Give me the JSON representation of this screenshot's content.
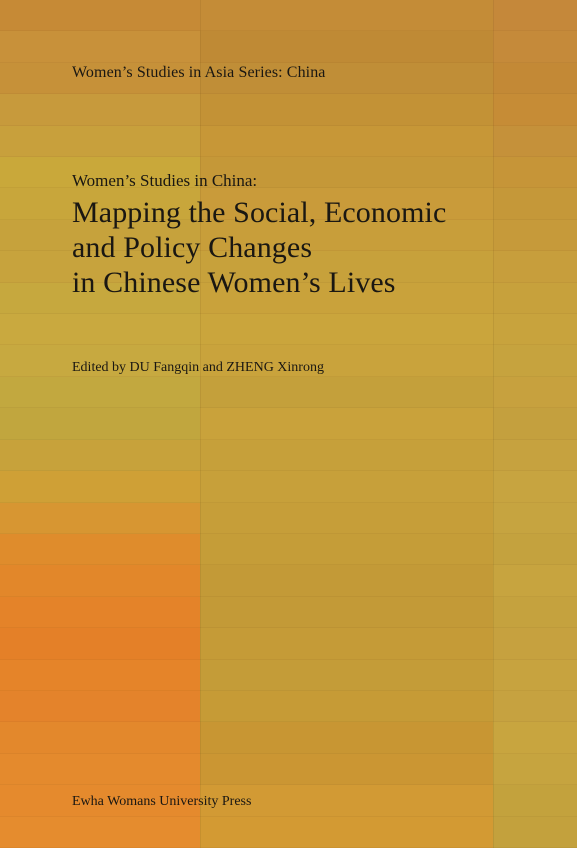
{
  "cover": {
    "series": "Women’s Studies in Asia Series: China",
    "subtitle": "Women’s Studies in China:",
    "title_lines": [
      "Mapping the Social, Economic",
      "and Policy Changes",
      "in Chinese Women’s Lives"
    ],
    "editors": "Edited by DU Fangqin and ZHENG Xinrong",
    "publisher": "Ewha Womans University Press"
  },
  "colors": {
    "base": "#c39a36",
    "left_column": [
      "#c68a36",
      "#c8913a",
      "#c69139",
      "#c79a3c",
      "#c8a03c",
      "#c9a83a",
      "#c8a63b",
      "#c6a23c",
      "#c7a33d",
      "#c6a83e",
      "#c9a93f",
      "#c7a940",
      "#c2a83f",
      "#c1a63e",
      "#c7a23b",
      "#cfa036",
      "#d79632",
      "#df8c2c",
      "#e2872a",
      "#e48329",
      "#e48028",
      "#e58429",
      "#e4832b",
      "#e3882c",
      "#e48a2d",
      "#e58a2d",
      "#e58c2e"
    ],
    "middle_column": [
      "#c48c37",
      "#bf8a35",
      "#c08e37",
      "#c39236",
      "#c79737",
      "#c59838",
      "#c99b3a",
      "#c89e3a",
      "#c7a13b",
      "#c9a23b",
      "#caa53c",
      "#c9a33c",
      "#c4a03b",
      "#c9a23b",
      "#c6a03a",
      "#c7a03a",
      "#c69e39",
      "#c59d38",
      "#c39a37",
      "#c39a37",
      "#c59b37",
      "#c49c38",
      "#c69b36",
      "#c89633",
      "#cb9633",
      "#d29a34",
      "#d39a33"
    ],
    "right_column": [
      "#c5883a",
      "#c58a3a",
      "#c38936",
      "#c68c36",
      "#c5913a",
      "#c69538",
      "#c59839",
      "#c69a3a",
      "#c79e3c",
      "#c7a13c",
      "#c8a33d",
      "#c6a33e",
      "#c7a13e",
      "#c4a03e",
      "#c6a23f",
      "#c7a440",
      "#c6a440",
      "#c4a23e",
      "#c7a43f",
      "#c5a23e",
      "#c6a13f",
      "#c7a33f",
      "#c6a240",
      "#c8a53f",
      "#c6a43f",
      "#c3a23d",
      "#c3a13d"
    ]
  }
}
